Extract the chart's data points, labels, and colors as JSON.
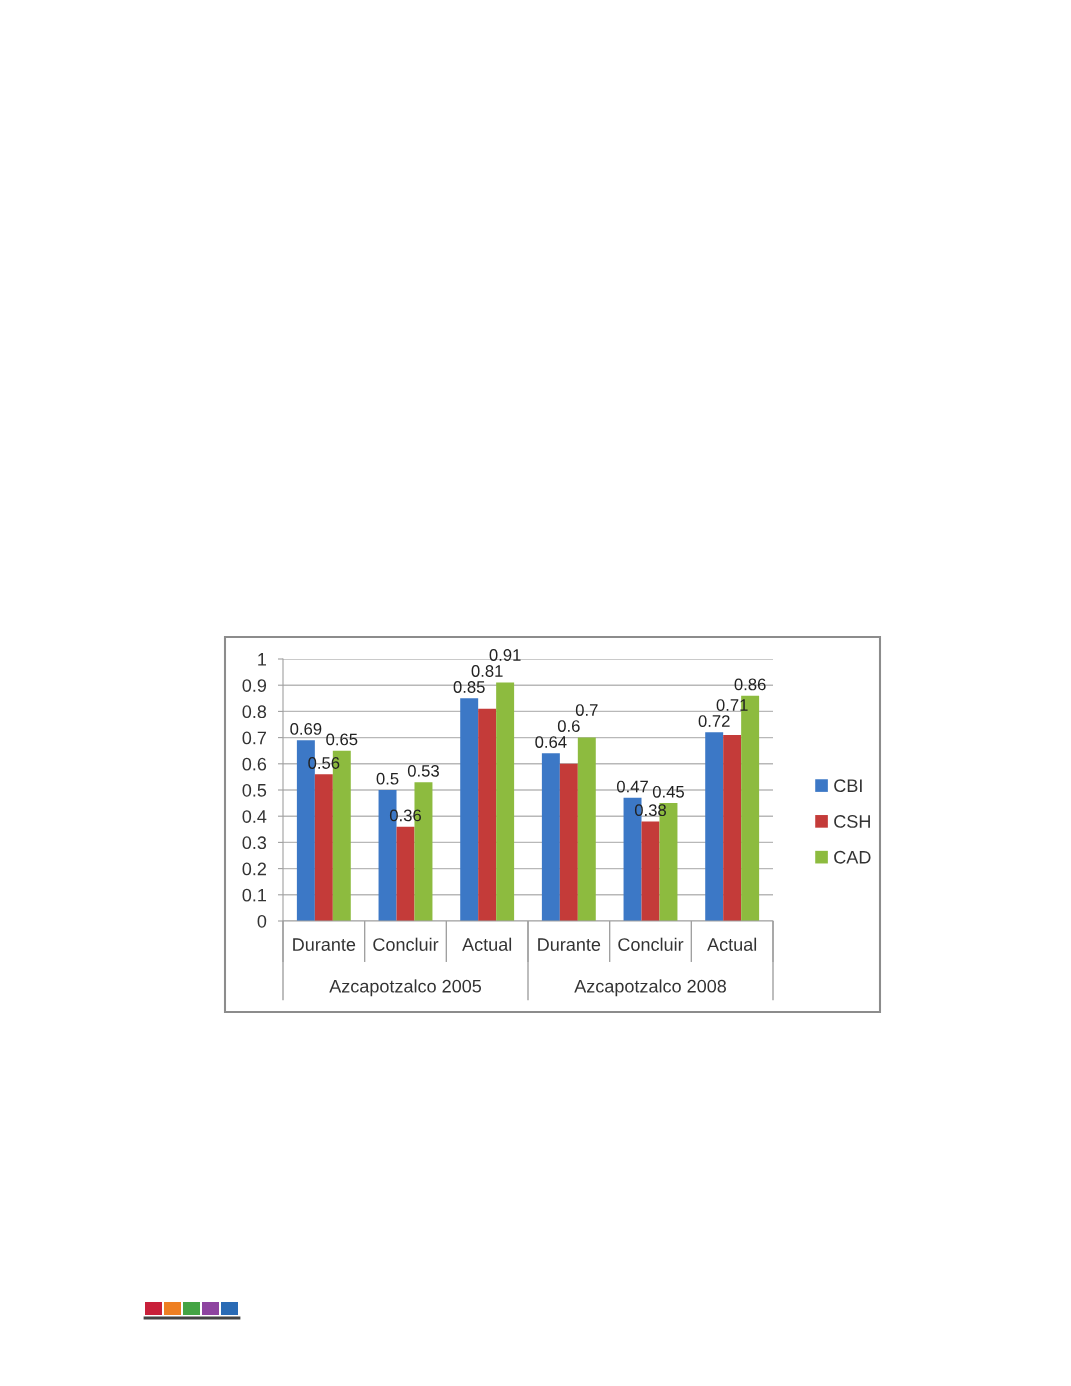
{
  "chart_data": {
    "type": "bar",
    "categories": [
      "Durante",
      "Concluir",
      "Actual",
      "Durante",
      "Concluir",
      "Actual"
    ],
    "series": [
      {
        "name": "CBI",
        "color": "#3c78c6",
        "values": [
          0.69,
          0.5,
          0.85,
          0.64,
          0.47,
          0.72
        ]
      },
      {
        "name": "CSH",
        "color": "#c43b39",
        "values": [
          0.56,
          0.36,
          0.81,
          0.6,
          0.38,
          0.71
        ]
      },
      {
        "name": "CAD",
        "color": "#8dbb3f",
        "values": [
          0.65,
          0.53,
          0.91,
          0.7,
          0.45,
          0.86
        ]
      }
    ],
    "ylim": [
      0,
      1
    ],
    "yticks": [
      0,
      0.1,
      0.2,
      0.3,
      0.4,
      0.5,
      0.6,
      0.7,
      0.8,
      0.9,
      1
    ],
    "grid": "y",
    "legend": "right",
    "data_labels": true,
    "annotations": [
      "Azcapotzalco 2005",
      "Azcapotzalco 2008"
    ]
  }
}
